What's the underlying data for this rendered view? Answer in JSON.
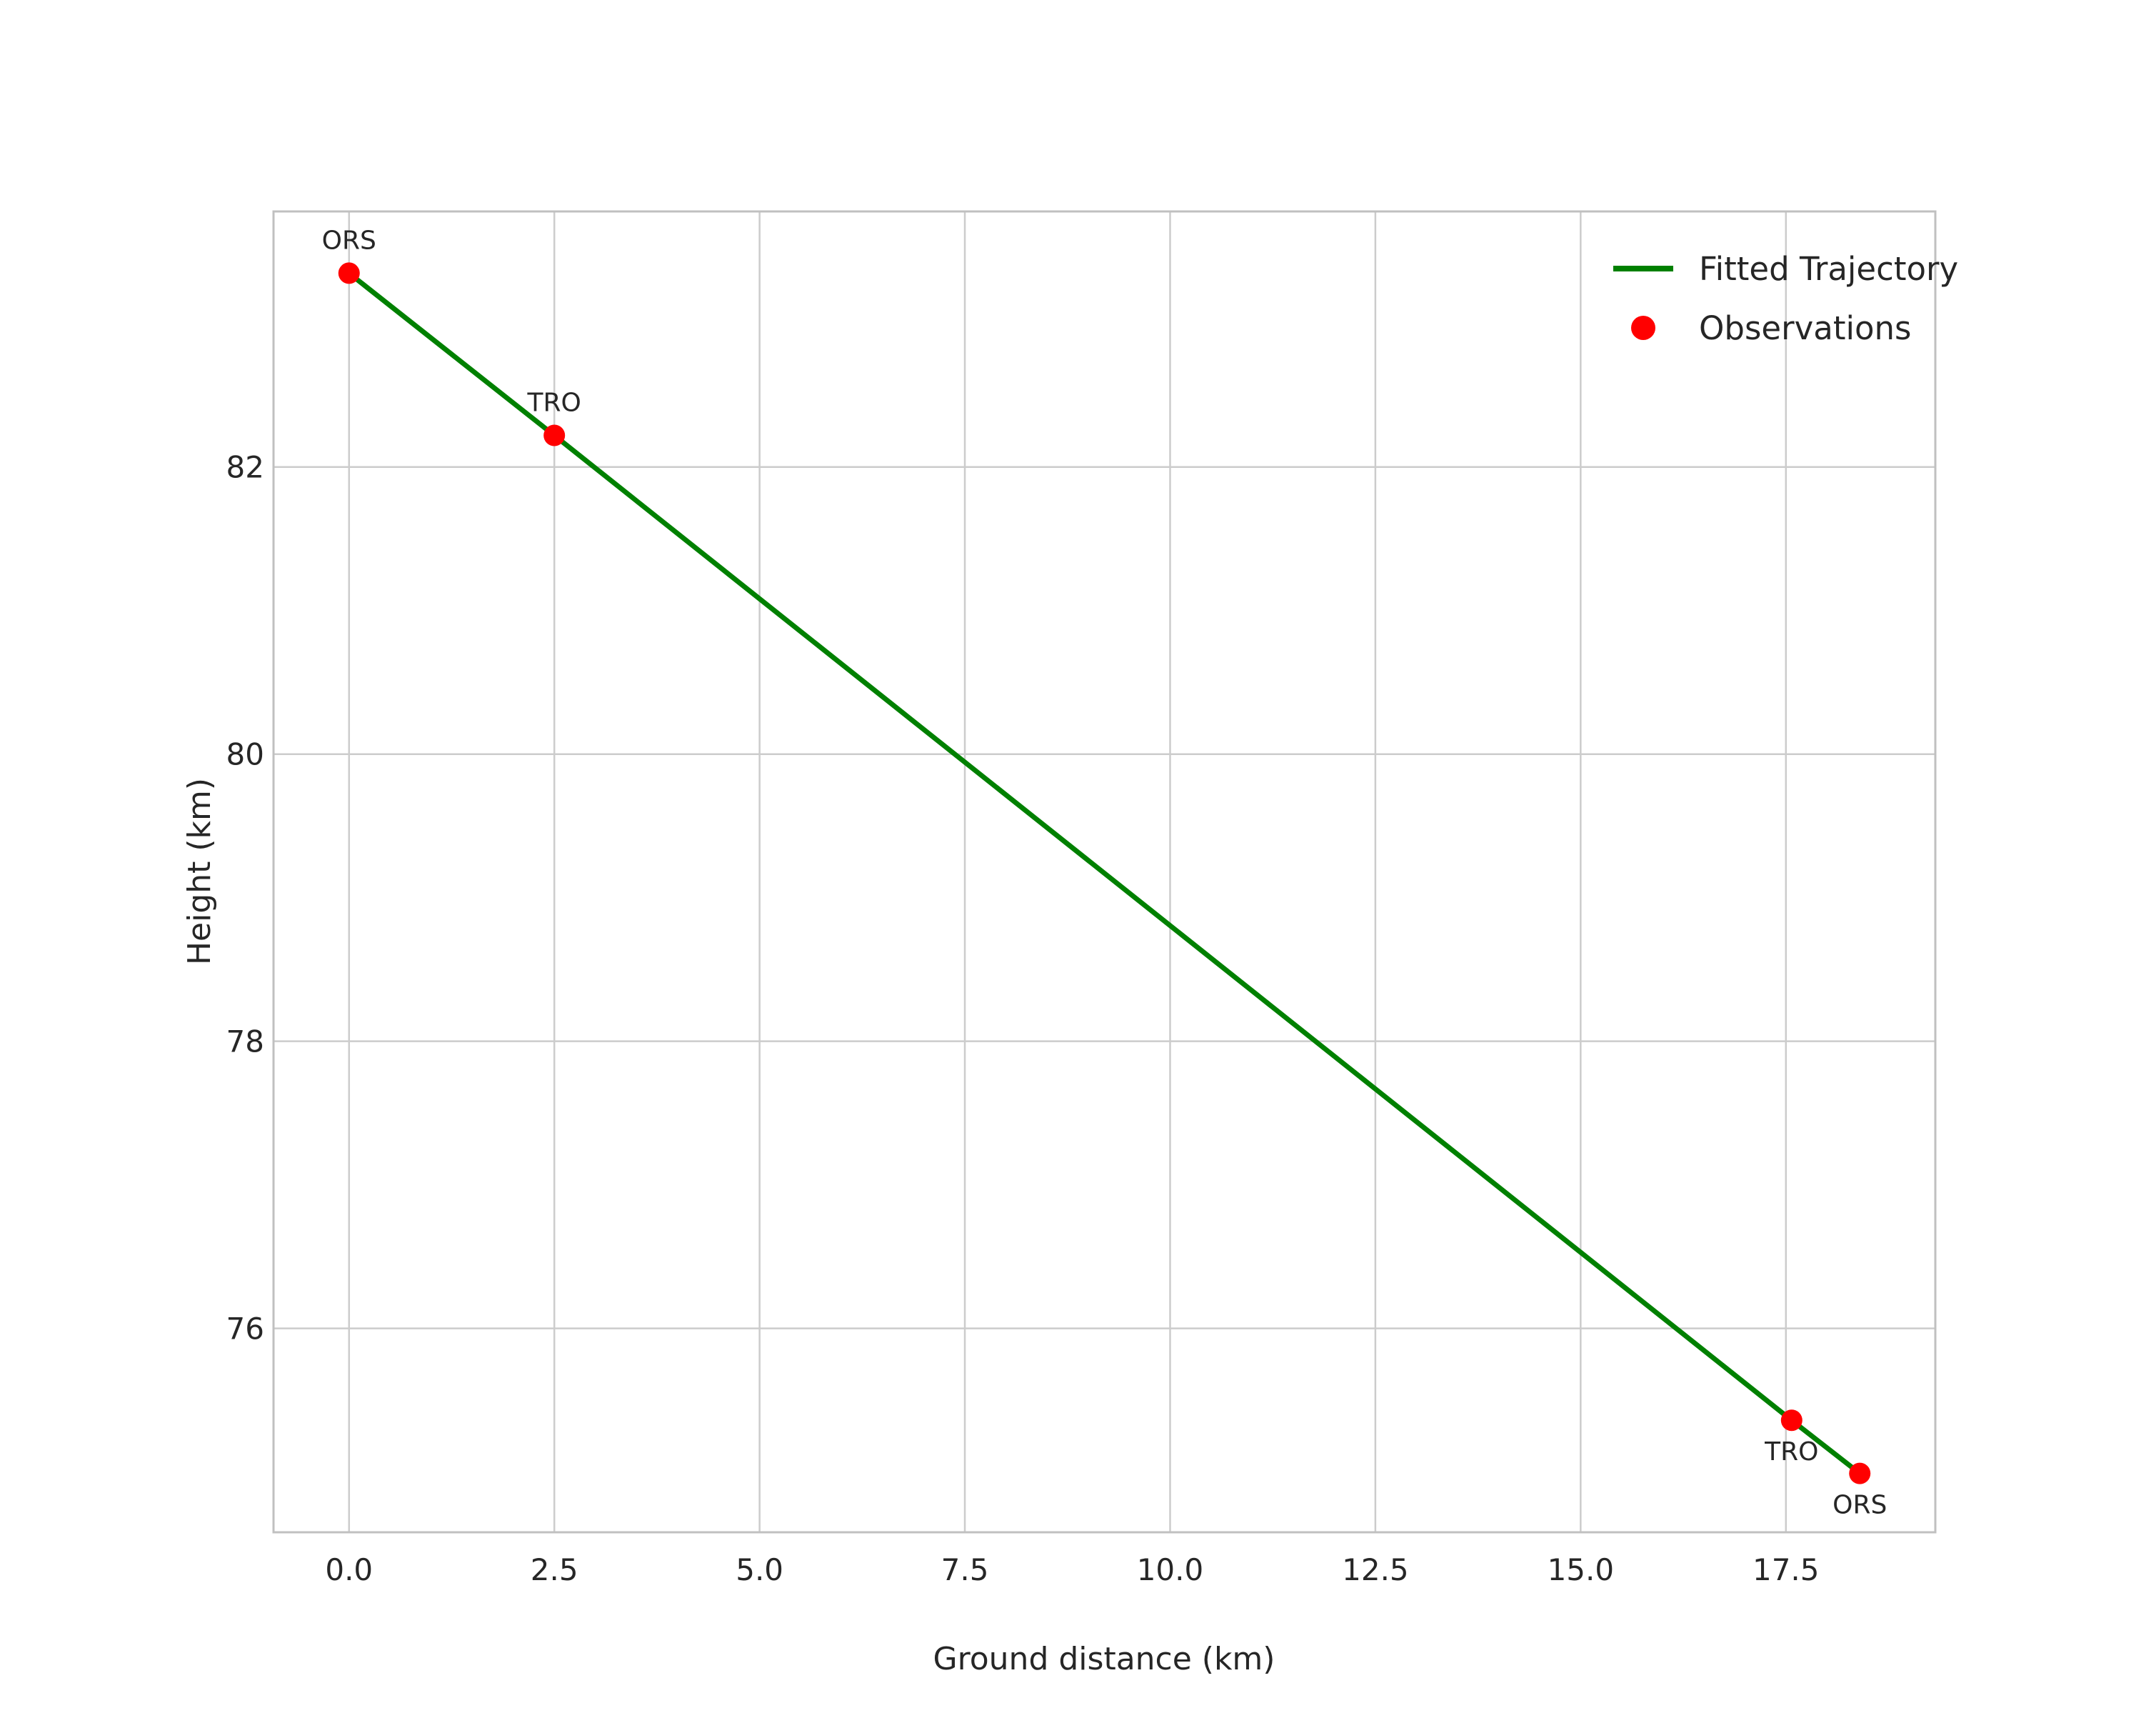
{
  "chart_data": {
    "type": "line",
    "title": "",
    "xlabel": "Ground distance (km)",
    "ylabel": "Height (km)",
    "xlim": [
      -0.92,
      19.32
    ],
    "ylim": [
      74.58,
      83.78
    ],
    "grid": true,
    "xticks": {
      "values": [
        0.0,
        2.5,
        5.0,
        7.5,
        10.0,
        12.5,
        15.0,
        17.5
      ],
      "labels": [
        "0.0",
        "2.5",
        "5.0",
        "7.5",
        "10.0",
        "12.5",
        "15.0",
        "17.5"
      ]
    },
    "yticks": {
      "values": [
        76,
        78,
        80,
        82
      ],
      "labels": [
        "76",
        "78",
        "80",
        "82"
      ]
    },
    "legend": {
      "position": "upper-right",
      "entries": [
        {
          "label": "Fitted Trajectory",
          "marker": "line",
          "color": "#008000"
        },
        {
          "label": "Observations",
          "marker": "dot",
          "color": "#ff0000"
        }
      ]
    },
    "series": [
      {
        "name": "Fitted Trajectory",
        "type": "line",
        "color": "#008000",
        "points": [
          {
            "x": 0.0,
            "y": 83.35
          },
          {
            "x": 2.5,
            "y": 82.22
          },
          {
            "x": 17.57,
            "y": 75.36
          },
          {
            "x": 18.4,
            "y": 74.99
          }
        ]
      },
      {
        "name": "Observations",
        "type": "scatter",
        "color": "#ff0000",
        "points": [
          {
            "x": 0.0,
            "y": 83.35,
            "label": "ORS",
            "label_placement": "above"
          },
          {
            "x": 2.5,
            "y": 82.22,
            "label": "TRO",
            "label_placement": "above"
          },
          {
            "x": 17.57,
            "y": 75.36,
            "label": "TRO",
            "label_placement": "below"
          },
          {
            "x": 18.4,
            "y": 74.99,
            "label": "ORS",
            "label_placement": "below"
          }
        ]
      }
    ],
    "style": {
      "grid_color": "#cccccc",
      "spine_color": "#c0c0c0",
      "text_color": "#262626",
      "background": "#ffffff"
    }
  }
}
